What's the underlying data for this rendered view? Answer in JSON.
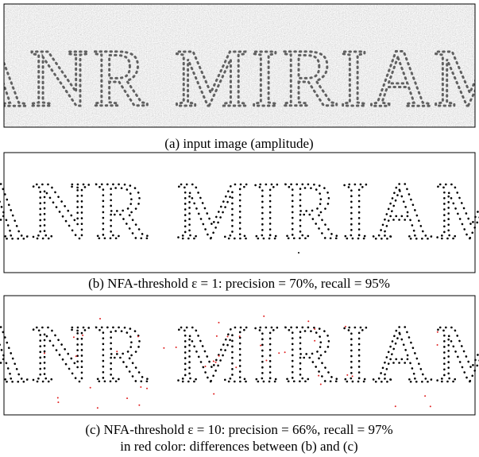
{
  "figure": {
    "image_text": "ANR MIRIAM",
    "panels": [
      {
        "caption": "(a) input image (amplitude)"
      },
      {
        "caption": "(b) NFA-threshold ε = 1: precision = 70%, recall = 95%"
      },
      {
        "caption": "(c) NFA-threshold ε = 10: precision = 66%, recall = 97%",
        "note": "in red color: differences between (b) and (c)"
      }
    ]
  }
}
